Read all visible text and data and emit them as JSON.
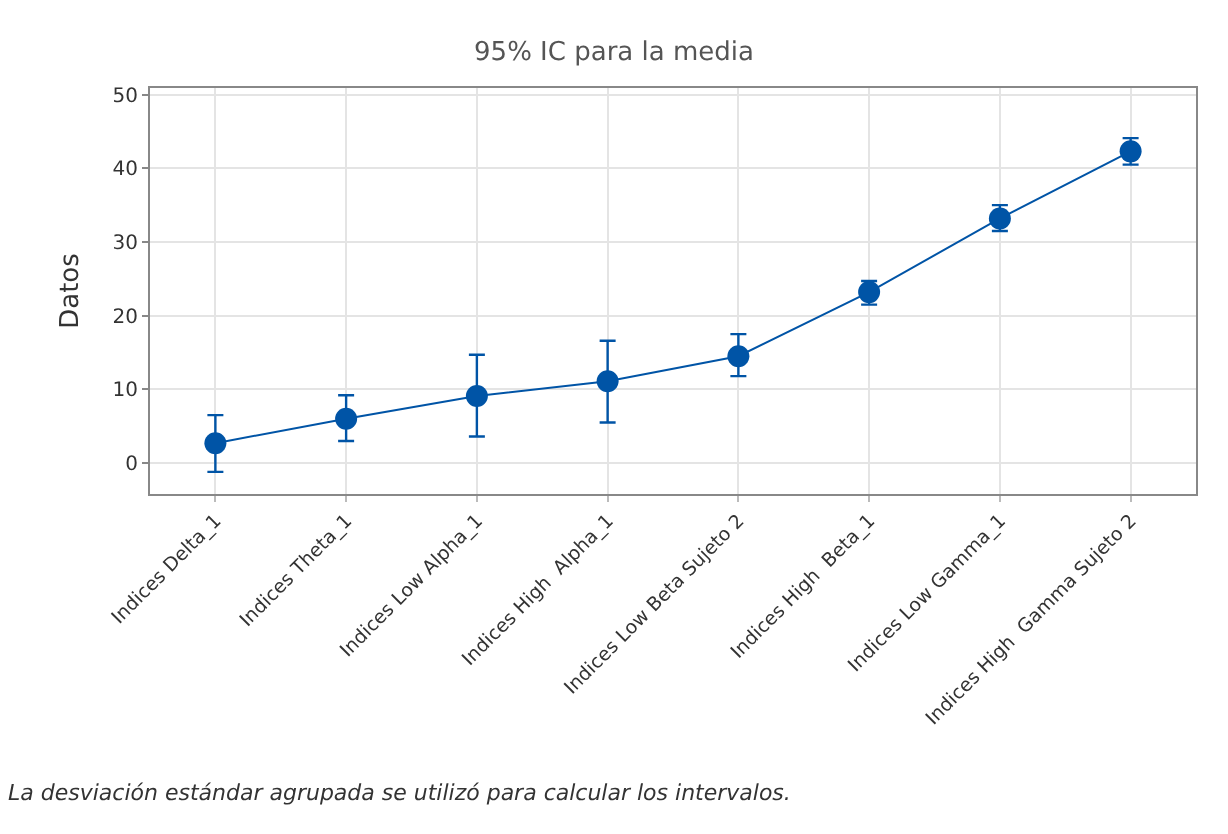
{
  "chart_data": {
    "type": "line",
    "title": "95% IC para la media",
    "ylabel": "Datos",
    "categories": [
      "Indices Delta_1",
      "Indices Theta_1",
      "Indices Low Alpha_1",
      "Indices High  Alpha_1",
      "Indices Low Beta Sujeto 2",
      "Indices High  Beta_1",
      "Indices Low Gamma_1",
      "Indices High  Gamma Sujeto 2"
    ],
    "series": [
      {
        "color": "#0054a6",
        "values": [
          2.7,
          6.0,
          9.1,
          11.1,
          14.5,
          23.2,
          33.2,
          42.3
        ],
        "errors": [
          [
            -1.2,
            6.5
          ],
          [
            3.0,
            9.2
          ],
          [
            3.6,
            14.7
          ],
          [
            5.5,
            16.6
          ],
          [
            11.8,
            17.5
          ],
          [
            21.5,
            24.7
          ],
          [
            31.5,
            35.0
          ],
          [
            40.5,
            44.1
          ]
        ]
      }
    ],
    "ylim": [
      -4.2,
      50.9
    ],
    "yticks": [
      0,
      10,
      20,
      30,
      40,
      50
    ],
    "grid": true,
    "marker": "circle",
    "line_style": "solid",
    "annotations": [
      "La desviación estándar agrupada se utilizó para calcular los intervalos."
    ]
  }
}
